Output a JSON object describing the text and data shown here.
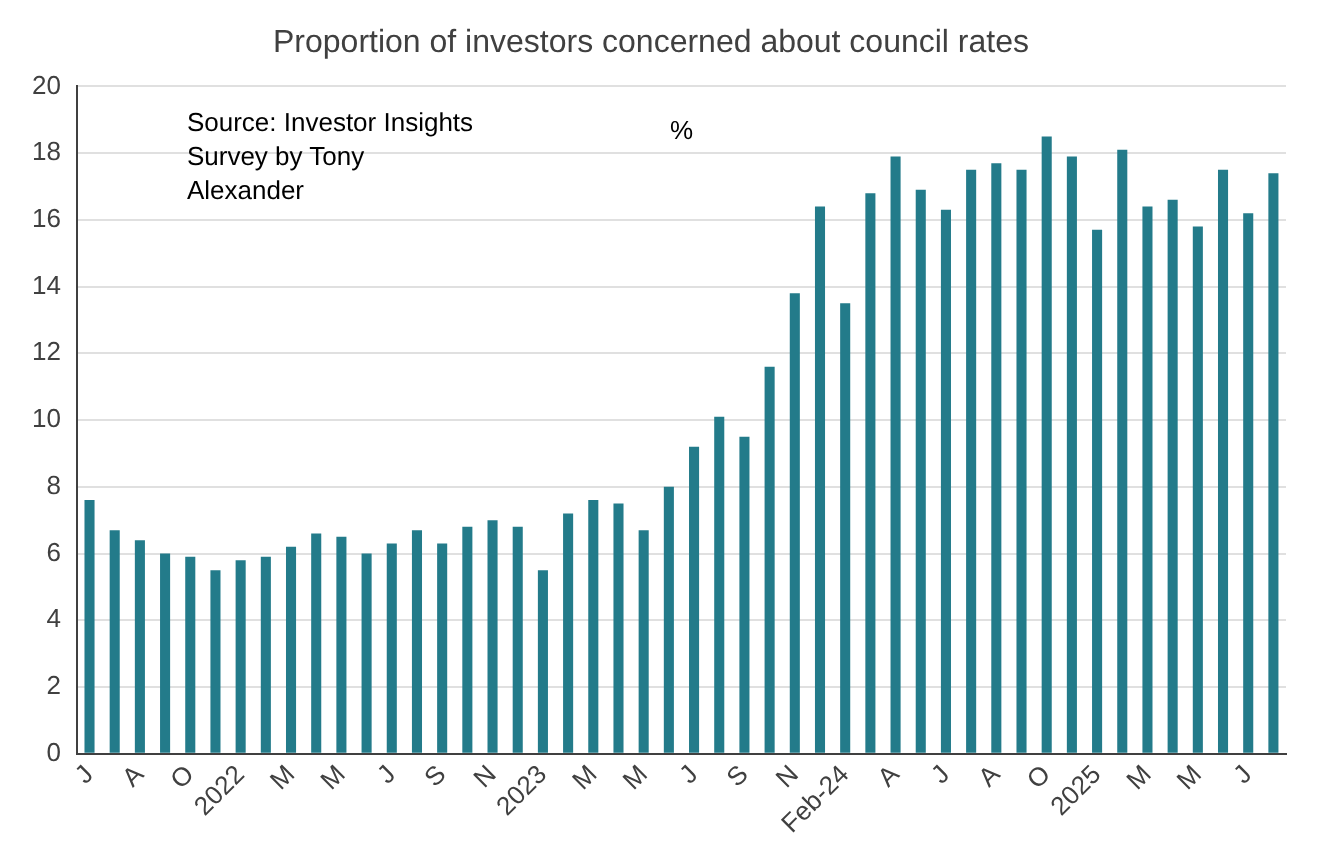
{
  "chart_data": {
    "type": "bar",
    "title": "Proportion of investors concerned about council rates",
    "ylabel": "%",
    "annotations": [
      "Source: Investor Insights Survey by Tony Alexander"
    ],
    "categories": [
      "J",
      null,
      "A",
      null,
      "O",
      null,
      "2022",
      null,
      "M",
      null,
      "M",
      null,
      "J",
      null,
      "S",
      null,
      "N",
      null,
      "2023",
      null,
      "M",
      null,
      "M",
      null,
      "J",
      null,
      "S",
      null,
      "N",
      null,
      "Feb-24",
      null,
      "A",
      null,
      "J",
      null,
      "A",
      null,
      "O",
      null,
      "2025",
      null,
      "M",
      null,
      "M",
      null,
      "J",
      null
    ],
    "values": [
      7.6,
      6.7,
      6.4,
      6.0,
      5.9,
      5.5,
      5.8,
      5.9,
      6.2,
      6.6,
      6.5,
      6.0,
      6.3,
      6.7,
      6.3,
      6.8,
      7.0,
      6.8,
      5.5,
      7.2,
      7.6,
      7.5,
      6.7,
      8.0,
      9.2,
      10.1,
      9.5,
      11.6,
      13.8,
      16.4,
      13.5,
      16.8,
      17.9,
      16.9,
      16.3,
      17.5,
      17.7,
      17.5,
      18.5,
      17.9,
      15.7,
      18.1,
      16.4,
      16.6,
      15.8,
      17.5,
      16.2,
      17.4
    ],
    "color": "#237b8a",
    "ylim": [
      0,
      20
    ],
    "yticks": [
      0,
      2,
      4,
      6,
      8,
      10,
      12,
      14,
      16,
      18,
      20
    ],
    "grid": "y"
  }
}
